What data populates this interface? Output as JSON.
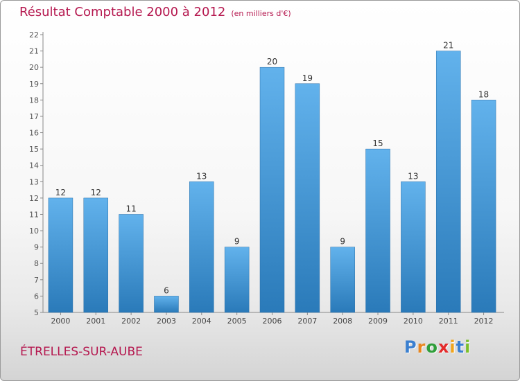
{
  "header": {
    "title": "Résultat Comptable 2000 à 2012",
    "unit": "(en milliers d'€)"
  },
  "footer": {
    "city": "ÉTRELLES-SUR-AUBE",
    "logo_letters": [
      {
        "ch": "P",
        "color": "#3a7fd0"
      },
      {
        "ch": "r",
        "color": "#e8861f"
      },
      {
        "ch": "o",
        "color": "#2f9e3a"
      },
      {
        "ch": "x",
        "color": "#e32b2b"
      },
      {
        "ch": "i",
        "color": "#f0a41c"
      },
      {
        "ch": "t",
        "color": "#3a7fd0"
      },
      {
        "ch": "i",
        "color": "#7bbf2a"
      }
    ]
  },
  "chart_data": {
    "type": "bar",
    "categories": [
      "2000",
      "2001",
      "2002",
      "2003",
      "2004",
      "2005",
      "2006",
      "2007",
      "2008",
      "2009",
      "2010",
      "2011",
      "2012"
    ],
    "values": [
      12,
      12,
      11,
      6,
      13,
      9,
      20,
      19,
      9,
      15,
      13,
      21,
      18
    ],
    "ylim": [
      5,
      22
    ],
    "yticks": [
      5,
      6,
      7,
      8,
      9,
      10,
      11,
      12,
      13,
      14,
      15,
      16,
      17,
      18,
      19,
      20,
      21,
      22
    ],
    "grid": false,
    "data_labels": true,
    "bar_color_top": "#62b2ec",
    "bar_color_bottom": "#2a7ab9"
  }
}
